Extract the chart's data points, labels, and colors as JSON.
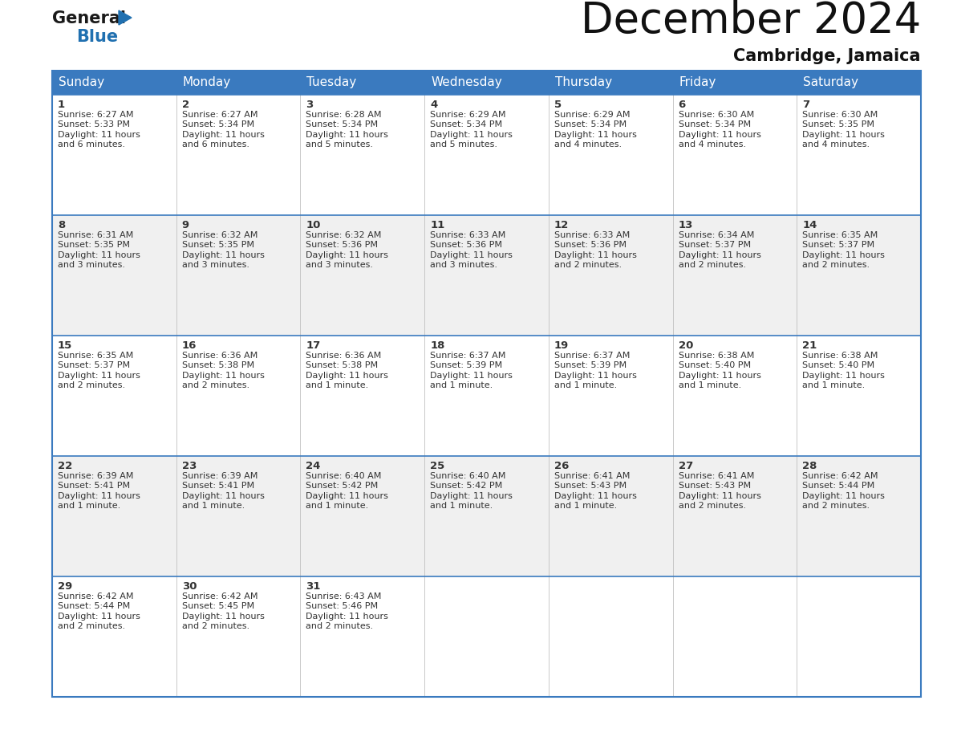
{
  "title": "December 2024",
  "subtitle": "Cambridge, Jamaica",
  "header_color": "#3a7abf",
  "header_text_color": "#ffffff",
  "cell_bg_even": "#ffffff",
  "cell_bg_odd": "#f0f0f0",
  "border_color": "#3a7abf",
  "text_color": "#333333",
  "days_of_week": [
    "Sunday",
    "Monday",
    "Tuesday",
    "Wednesday",
    "Thursday",
    "Friday",
    "Saturday"
  ],
  "calendar_data": [
    [
      {
        "day": 1,
        "sunrise": "6:27 AM",
        "sunset": "5:33 PM",
        "daylight": "11 hours\nand 6 minutes."
      },
      {
        "day": 2,
        "sunrise": "6:27 AM",
        "sunset": "5:34 PM",
        "daylight": "11 hours\nand 6 minutes."
      },
      {
        "day": 3,
        "sunrise": "6:28 AM",
        "sunset": "5:34 PM",
        "daylight": "11 hours\nand 5 minutes."
      },
      {
        "day": 4,
        "sunrise": "6:29 AM",
        "sunset": "5:34 PM",
        "daylight": "11 hours\nand 5 minutes."
      },
      {
        "day": 5,
        "sunrise": "6:29 AM",
        "sunset": "5:34 PM",
        "daylight": "11 hours\nand 4 minutes."
      },
      {
        "day": 6,
        "sunrise": "6:30 AM",
        "sunset": "5:34 PM",
        "daylight": "11 hours\nand 4 minutes."
      },
      {
        "day": 7,
        "sunrise": "6:30 AM",
        "sunset": "5:35 PM",
        "daylight": "11 hours\nand 4 minutes."
      }
    ],
    [
      {
        "day": 8,
        "sunrise": "6:31 AM",
        "sunset": "5:35 PM",
        "daylight": "11 hours\nand 3 minutes."
      },
      {
        "day": 9,
        "sunrise": "6:32 AM",
        "sunset": "5:35 PM",
        "daylight": "11 hours\nand 3 minutes."
      },
      {
        "day": 10,
        "sunrise": "6:32 AM",
        "sunset": "5:36 PM",
        "daylight": "11 hours\nand 3 minutes."
      },
      {
        "day": 11,
        "sunrise": "6:33 AM",
        "sunset": "5:36 PM",
        "daylight": "11 hours\nand 3 minutes."
      },
      {
        "day": 12,
        "sunrise": "6:33 AM",
        "sunset": "5:36 PM",
        "daylight": "11 hours\nand 2 minutes."
      },
      {
        "day": 13,
        "sunrise": "6:34 AM",
        "sunset": "5:37 PM",
        "daylight": "11 hours\nand 2 minutes."
      },
      {
        "day": 14,
        "sunrise": "6:35 AM",
        "sunset": "5:37 PM",
        "daylight": "11 hours\nand 2 minutes."
      }
    ],
    [
      {
        "day": 15,
        "sunrise": "6:35 AM",
        "sunset": "5:37 PM",
        "daylight": "11 hours\nand 2 minutes."
      },
      {
        "day": 16,
        "sunrise": "6:36 AM",
        "sunset": "5:38 PM",
        "daylight": "11 hours\nand 2 minutes."
      },
      {
        "day": 17,
        "sunrise": "6:36 AM",
        "sunset": "5:38 PM",
        "daylight": "11 hours\nand 1 minute."
      },
      {
        "day": 18,
        "sunrise": "6:37 AM",
        "sunset": "5:39 PM",
        "daylight": "11 hours\nand 1 minute."
      },
      {
        "day": 19,
        "sunrise": "6:37 AM",
        "sunset": "5:39 PM",
        "daylight": "11 hours\nand 1 minute."
      },
      {
        "day": 20,
        "sunrise": "6:38 AM",
        "sunset": "5:40 PM",
        "daylight": "11 hours\nand 1 minute."
      },
      {
        "day": 21,
        "sunrise": "6:38 AM",
        "sunset": "5:40 PM",
        "daylight": "11 hours\nand 1 minute."
      }
    ],
    [
      {
        "day": 22,
        "sunrise": "6:39 AM",
        "sunset": "5:41 PM",
        "daylight": "11 hours\nand 1 minute."
      },
      {
        "day": 23,
        "sunrise": "6:39 AM",
        "sunset": "5:41 PM",
        "daylight": "11 hours\nand 1 minute."
      },
      {
        "day": 24,
        "sunrise": "6:40 AM",
        "sunset": "5:42 PM",
        "daylight": "11 hours\nand 1 minute."
      },
      {
        "day": 25,
        "sunrise": "6:40 AM",
        "sunset": "5:42 PM",
        "daylight": "11 hours\nand 1 minute."
      },
      {
        "day": 26,
        "sunrise": "6:41 AM",
        "sunset": "5:43 PM",
        "daylight": "11 hours\nand 1 minute."
      },
      {
        "day": 27,
        "sunrise": "6:41 AM",
        "sunset": "5:43 PM",
        "daylight": "11 hours\nand 2 minutes."
      },
      {
        "day": 28,
        "sunrise": "6:42 AM",
        "sunset": "5:44 PM",
        "daylight": "11 hours\nand 2 minutes."
      }
    ],
    [
      {
        "day": 29,
        "sunrise": "6:42 AM",
        "sunset": "5:44 PM",
        "daylight": "11 hours\nand 2 minutes."
      },
      {
        "day": 30,
        "sunrise": "6:42 AM",
        "sunset": "5:45 PM",
        "daylight": "11 hours\nand 2 minutes."
      },
      {
        "day": 31,
        "sunrise": "6:43 AM",
        "sunset": "5:46 PM",
        "daylight": "11 hours\nand 2 minutes."
      },
      null,
      null,
      null,
      null
    ]
  ],
  "logo_color_general": "#1a1a1a",
  "logo_color_blue": "#2070b0",
  "title_fontsize": 38,
  "subtitle_fontsize": 15,
  "header_fontsize": 11,
  "day_num_fontsize": 9.5,
  "cell_text_fontsize": 8.0
}
